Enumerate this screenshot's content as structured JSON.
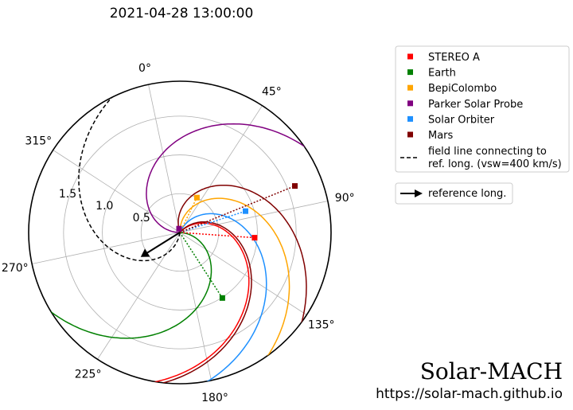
{
  "chart_data": {
    "type": "polar",
    "title": "2021-04-28 13:00:00",
    "theta_ticks": [
      {
        "deg": 0,
        "label": "0°"
      },
      {
        "deg": 45,
        "label": "45°"
      },
      {
        "deg": 90,
        "label": "90°"
      },
      {
        "deg": 135,
        "label": "135°"
      },
      {
        "deg": 180,
        "label": "180°"
      },
      {
        "deg": 225,
        "label": "225°"
      },
      {
        "deg": 270,
        "label": "270°"
      },
      {
        "deg": 315,
        "label": "315°"
      }
    ],
    "r_ticks": [
      {
        "r": 0.5,
        "label": "0.5"
      },
      {
        "r": 1.0,
        "label": "1.0"
      },
      {
        "r": 1.5,
        "label": "1.5"
      }
    ],
    "rlim": [
      0,
      1.95
    ],
    "grid": true,
    "legend_position": "top-right",
    "vsw_km_s": 400,
    "bodies": [
      {
        "name": "STEREO A",
        "color": "#ff0000",
        "r": 0.966,
        "lon": 106,
        "ref_lon": 56,
        "line_color": "#ff0000"
      },
      {
        "name": "Earth",
        "color": "#008000",
        "r": 1.007,
        "lon": 159,
        "ref_lon": 105,
        "line_color": "#008000"
      },
      {
        "name": "BepiColombo",
        "color": "#ffa500",
        "r": 0.5,
        "lon": 38,
        "ref_lon": 11,
        "line_color": "#ffa500"
      },
      {
        "name": "Parker Solar Probe",
        "color": "#800080",
        "r": 0.05,
        "lon": 0,
        "ref_lon": 282,
        "line_color": "#800080"
      },
      {
        "name": "Solar Orbiter",
        "color": "#1e90ff",
        "r": 0.89,
        "lon": 84,
        "ref_lon": 36,
        "line_color": "#1e90ff"
      },
      {
        "name": "Mars",
        "color": "#800000",
        "r": 1.6,
        "lon": 80,
        "ref_lon": -7,
        "line_color": "#800000"
      }
    ],
    "reference": {
      "long": 250,
      "ref_lon": 200
    },
    "legend": {
      "bodies": [
        "STEREO A",
        "Earth",
        "BepiColombo",
        "Parker Solar Probe",
        "Solar Orbiter",
        "Mars"
      ],
      "field_line_label_1": "field line connecting to",
      "field_line_label_2": "ref. long. (vsw=400 km/s)",
      "reference_label": "reference long."
    }
  },
  "branding": {
    "name": "Solar-MACH",
    "url": "https://solar-mach.github.io"
  },
  "colors": {
    "axis": "#000000",
    "grid": "#b0b0b0",
    "legend_border": "#cccccc",
    "text": "#000000",
    "reference_dash": "#000000"
  }
}
